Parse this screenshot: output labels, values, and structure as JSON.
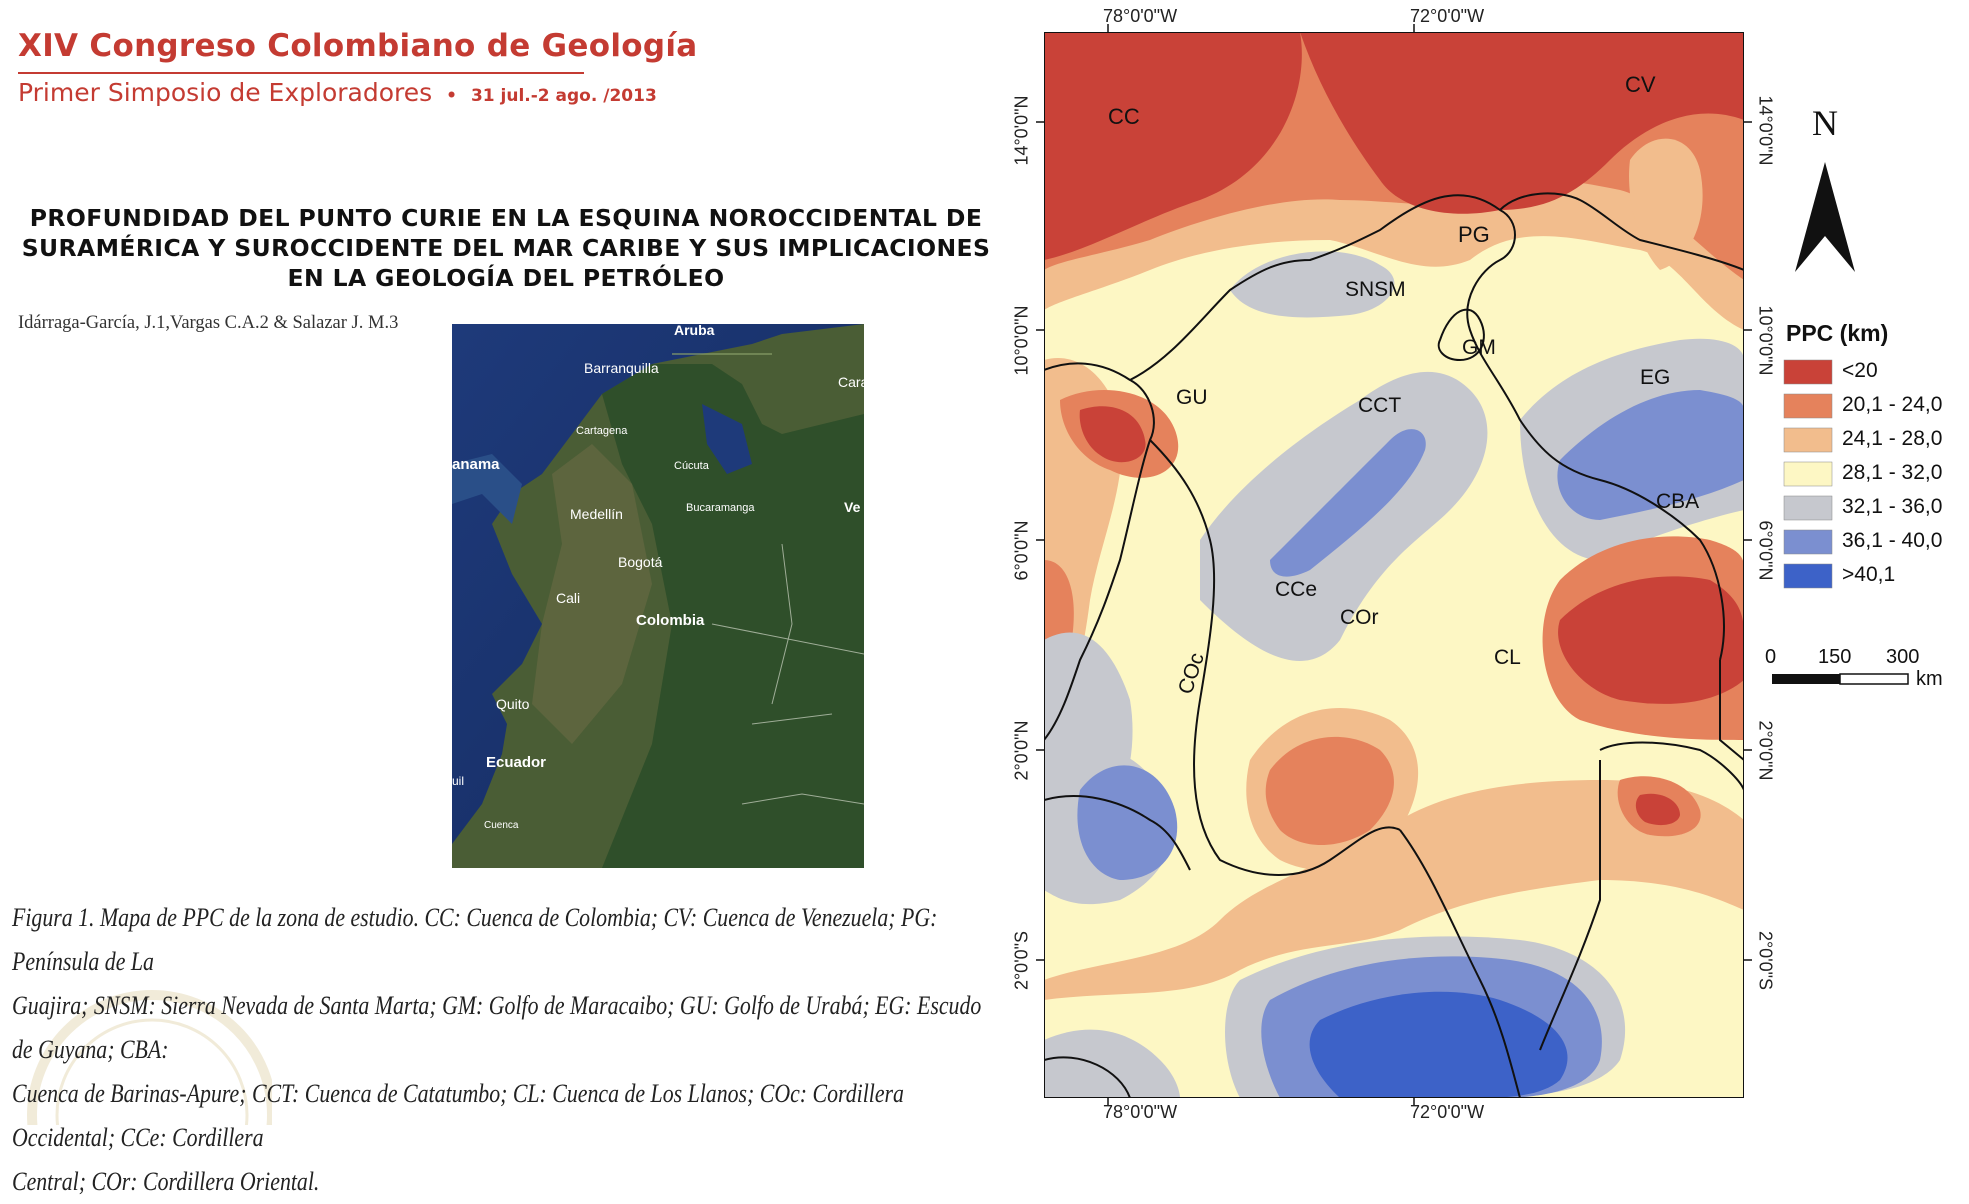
{
  "header": {
    "congress": "XIV Congreso Colombiano de  Geología",
    "symposium": "Primer Simposio de Exploradores",
    "dates": "31 jul.-2 ago. /2013"
  },
  "paper": {
    "title_line1": "PROFUNDIDAD DEL PUNTO CURIE EN LA ESQUINA NOROCCIDENTAL DE",
    "title_line2": "SURAMÉRICA Y SUROCCIDENTE DEL MAR CARIBE Y SUS IMPLICACIONES",
    "title_line3": "EN LA GEOLOGÍA DEL PETRÓLEO",
    "authors": "Idárraga-García, J.1,Vargas C.A.2 & Salazar J. M.3"
  },
  "satellite_labels": {
    "aruba": "Aruba",
    "barranquilla": "Barranquilla",
    "cartagena": "Cartagena",
    "caracas": "Cara",
    "panama": "anama",
    "cucuta": "Cúcuta",
    "medellin": "Medellín",
    "bucaramanga": "Bucaramanga",
    "venezuela": "Ve",
    "bogota": "Bogotá",
    "cali": "Cali",
    "colombia": "Colombia",
    "quito": "Quito",
    "ecuador": "Ecuador",
    "guil": "uil",
    "cuenca": "Cuenca"
  },
  "caption": {
    "line1": "Figura 1. Mapa de PPC de la zona de estudio. CC: Cuenca de Colombia; CV: Cuenca de Venezuela; PG: Península de La",
    "line2": "Guajira; SNSM: Sierra Nevada de Santa Marta; GM: Golfo de Maracaibo; GU: Golfo de Urabá; EG: Escudo de Guyana; CBA:",
    "line3": "Cuenca de Barinas-Apure; CCT: Cuenca de Catatumbo; CL: Cuenca de Los Llanos; COc: Cordillera Occidental; CCe: Cordillera",
    "line4": "Central; COr: Cordillera Oriental."
  },
  "map": {
    "lon_top_left": "78°0'0\"W",
    "lon_top_right": "72°0'0\"W",
    "lon_bottom_left": "78°0'0\"W",
    "lon_bottom_right": "72°0'0\"W",
    "lat_14": "14°0'0\"N",
    "lat_10": "10°0'0\"N",
    "lat_6": "6°0'0\"N",
    "lat_2": "2°0'0\"N",
    "lat_m2": "2°0'0\"S",
    "region_labels": {
      "cc": "CC",
      "cv": "CV",
      "pg": "PG",
      "snsm": "SNSM",
      "gm": "GM",
      "gu": "GU",
      "cct": "CCT",
      "eg": "EG",
      "cba": "CBA",
      "cce": "CCe",
      "cor": "COr",
      "cl": "CL",
      "coc": "COc"
    },
    "north": "N",
    "legend": {
      "title": "PPC (km)",
      "items": [
        {
          "label": "<20",
          "color": "#c94238"
        },
        {
          "label": "20,1 - 24,0",
          "color": "#e5825c"
        },
        {
          "label": "24,1 - 28,0",
          "color": "#f2bd8d"
        },
        {
          "label": "28,1 - 32,0",
          "color": "#fdf7c4"
        },
        {
          "label": "32,1 - 36,0",
          "color": "#c6c8ce"
        },
        {
          "label": "36,1 - 40,0",
          "color": "#7b8fd0"
        },
        {
          "label": ">40,1",
          "color": "#3d62c8"
        }
      ]
    },
    "scale": {
      "t0": "0",
      "t1": "150",
      "t2": "300",
      "unit": "km"
    }
  }
}
